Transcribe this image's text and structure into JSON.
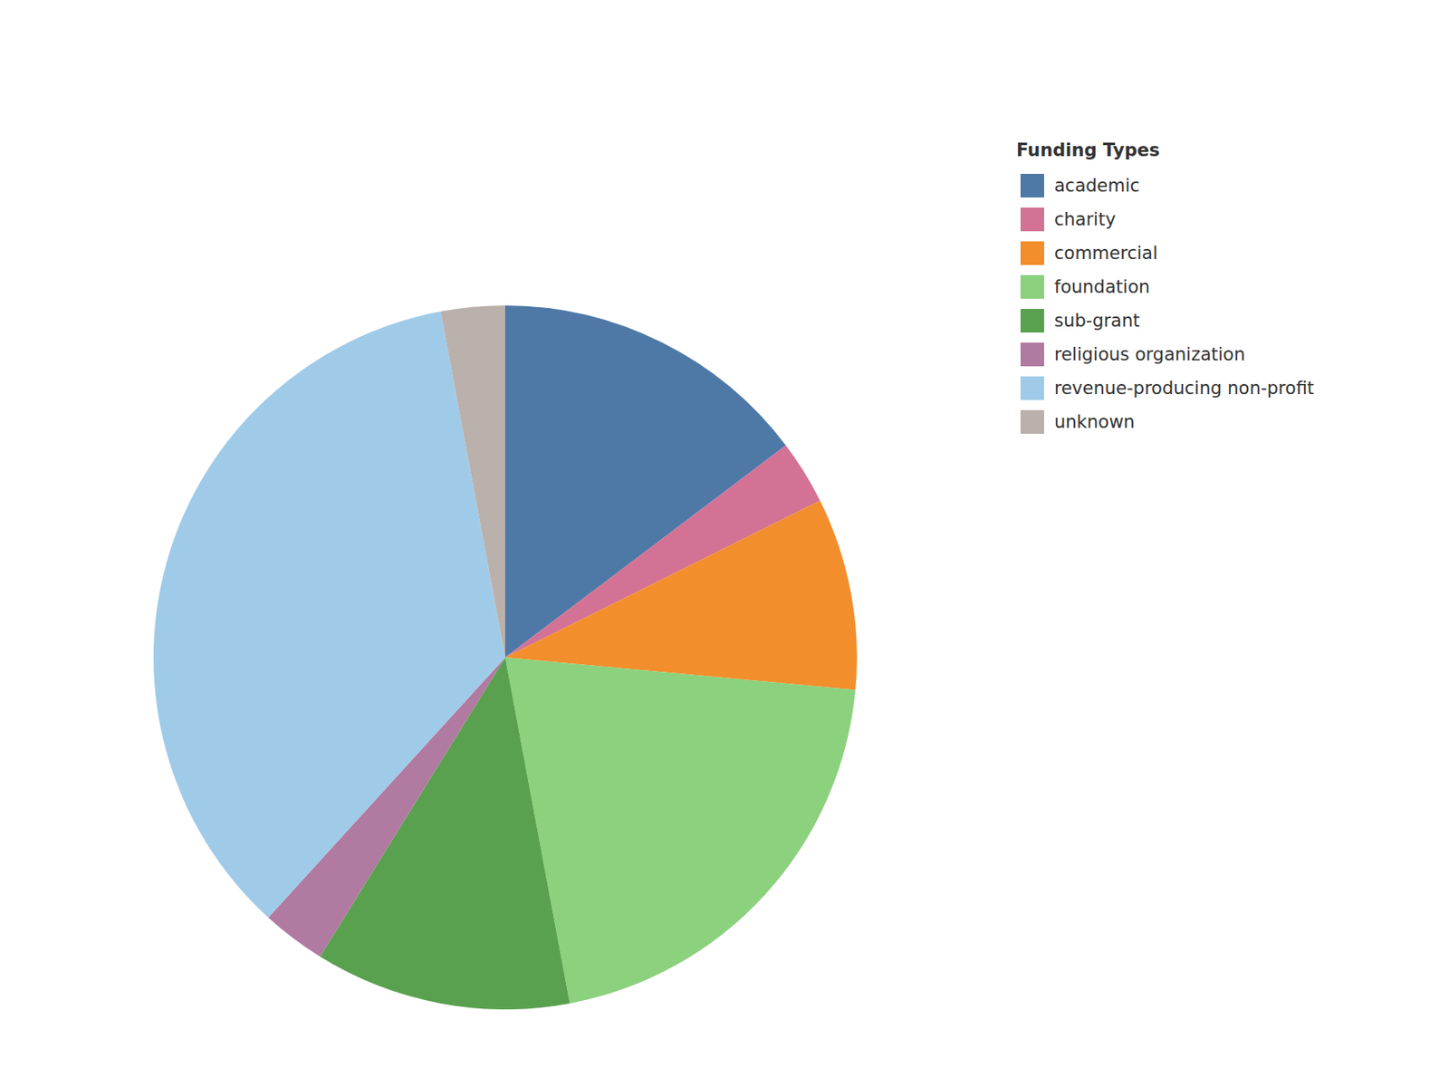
{
  "chart_data": {
    "type": "pie",
    "legend_title": "Funding Types",
    "legend": "right",
    "categories": [
      "academic",
      "charity",
      "commercial",
      "foundation",
      "sub-grant",
      "religious organization",
      "revenue-producing non-profit",
      "unknown"
    ],
    "values": [
      5,
      1,
      3,
      7,
      4,
      1,
      12,
      1
    ],
    "colors": [
      "#4e79a7",
      "#d37295",
      "#f28e2b",
      "#8cd17d",
      "#59a14f",
      "#b07aa1",
      "#a0cbe8",
      "#bab0ac"
    ]
  }
}
